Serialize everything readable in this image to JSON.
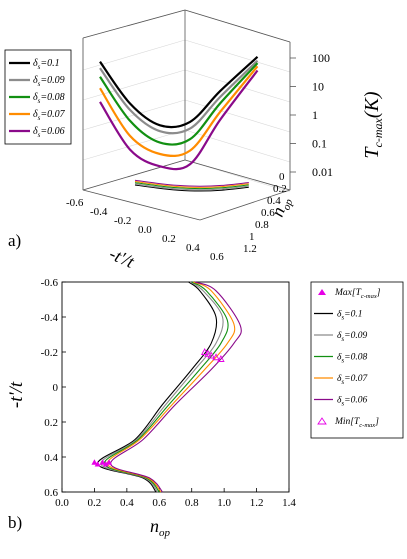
{
  "panels": {
    "a": {
      "label": "a)"
    },
    "b": {
      "label": "b)"
    }
  },
  "colors": {
    "0.1": "#000000",
    "0.09": "#8c8c8c",
    "0.08": "#129012",
    "0.07": "#ff8c00",
    "0.06": "#8a0a8a",
    "marker": "#e600e6"
  },
  "chart_data": [
    {
      "type": "line",
      "subtype": "3d-surface-curves",
      "panel": "a",
      "xlabel": "-t'/t",
      "ylabel": "n_op",
      "zlabel": "T_c-max(K)",
      "z_scale": "log",
      "x_ticks": [
        "-0.6",
        "-0.4",
        "-0.2",
        "0.0",
        "0.2",
        "0.4",
        "0.6"
      ],
      "y_ticks": [
        "0",
        "0.2",
        "0.4",
        "0.6",
        "0.8",
        "1",
        "1.2"
      ],
      "z_ticks": [
        "0.01",
        "0.1",
        "1",
        "10",
        "100"
      ],
      "grid": true,
      "legend_position": "top-left",
      "series": [
        {
          "name": "δ_s=0.1",
          "color": "#000000",
          "x": [
            -0.6,
            -0.4,
            -0.2,
            0.0,
            0.2,
            0.45
          ],
          "z": [
            50,
            2,
            0.4,
            0.6,
            8,
            150
          ]
        },
        {
          "name": "δ_s=0.09",
          "color": "#8c8c8c",
          "x": [
            -0.6,
            -0.4,
            -0.2,
            0.0,
            0.2,
            0.45
          ],
          "z": [
            30,
            1.2,
            0.25,
            0.35,
            5,
            110
          ]
        },
        {
          "name": "δ_s=0.08",
          "color": "#129012",
          "x": [
            -0.6,
            -0.4,
            -0.2,
            0.0,
            0.2,
            0.45
          ],
          "z": [
            15,
            0.5,
            0.1,
            0.15,
            3,
            90
          ]
        },
        {
          "name": "δ_s=0.07",
          "color": "#ff8c00",
          "x": [
            -0.6,
            -0.4,
            -0.2,
            0.0,
            0.2,
            0.45
          ],
          "z": [
            6,
            0.15,
            0.04,
            0.06,
            1.5,
            70
          ]
        },
        {
          "name": "δ_s=0.06",
          "color": "#8a0a8a",
          "x": [
            -0.6,
            -0.4,
            -0.2,
            0.0,
            0.2,
            0.45
          ],
          "z": [
            2,
            0.05,
            0.015,
            0.02,
            0.8,
            50
          ]
        }
      ]
    },
    {
      "type": "line",
      "panel": "b",
      "xlabel": "n_op",
      "ylabel": "-t'/t",
      "xlim": [
        0.0,
        1.4
      ],
      "ylim": [
        -0.6,
        0.6
      ],
      "y_inverted": true,
      "x_ticks": [
        "0.0",
        "0.2",
        "0.4",
        "0.6",
        "0.8",
        "1.0",
        "1.2",
        "1.4"
      ],
      "y_ticks": [
        "-0.6",
        "-0.4",
        "-0.2",
        "0",
        "0.2",
        "0.4",
        "0.6"
      ],
      "legend_position": "right",
      "legend": [
        "Max[T_c-max]",
        "δ_s=0.1",
        "δ_s=0.09",
        "δ_s=0.08",
        "δ_s=0.07",
        "δ_s=0.06",
        "Min[T_c-max]"
      ],
      "series": [
        {
          "name": "δ_s=0.1",
          "color": "#000000",
          "points": [
            [
              0.58,
              0.6
            ],
            [
              0.5,
              0.52
            ],
            [
              0.22,
              0.44
            ],
            [
              0.45,
              0.3
            ],
            [
              0.62,
              0.1
            ],
            [
              0.8,
              -0.1
            ],
            [
              0.92,
              -0.25
            ],
            [
              0.95,
              -0.4
            ],
            [
              0.85,
              -0.55
            ],
            [
              0.78,
              -0.6
            ]
          ]
        },
        {
          "name": "δ_s=0.09",
          "color": "#8c8c8c",
          "points": [
            [
              0.59,
              0.6
            ],
            [
              0.51,
              0.52
            ],
            [
              0.24,
              0.44
            ],
            [
              0.46,
              0.3
            ],
            [
              0.64,
              0.1
            ],
            [
              0.82,
              -0.1
            ],
            [
              0.95,
              -0.25
            ],
            [
              0.99,
              -0.4
            ],
            [
              0.87,
              -0.55
            ],
            [
              0.79,
              -0.6
            ]
          ]
        },
        {
          "name": "δ_s=0.08",
          "color": "#129012",
          "points": [
            [
              0.6,
              0.6
            ],
            [
              0.52,
              0.52
            ],
            [
              0.26,
              0.44
            ],
            [
              0.47,
              0.3
            ],
            [
              0.66,
              0.1
            ],
            [
              0.85,
              -0.1
            ],
            [
              0.98,
              -0.25
            ],
            [
              1.02,
              -0.38
            ],
            [
              0.89,
              -0.55
            ],
            [
              0.8,
              -0.6
            ]
          ]
        },
        {
          "name": "δ_s=0.07",
          "color": "#ff8c00",
          "points": [
            [
              0.61,
              0.6
            ],
            [
              0.53,
              0.52
            ],
            [
              0.28,
              0.44
            ],
            [
              0.48,
              0.3
            ],
            [
              0.68,
              0.1
            ],
            [
              0.88,
              -0.1
            ],
            [
              1.02,
              -0.25
            ],
            [
              1.06,
              -0.36
            ],
            [
              0.92,
              -0.55
            ],
            [
              0.81,
              -0.6
            ]
          ]
        },
        {
          "name": "δ_s=0.06",
          "color": "#8a0a8a",
          "points": [
            [
              0.62,
              0.6
            ],
            [
              0.54,
              0.52
            ],
            [
              0.3,
              0.44
            ],
            [
              0.5,
              0.3
            ],
            [
              0.7,
              0.1
            ],
            [
              0.92,
              -0.1
            ],
            [
              1.06,
              -0.25
            ],
            [
              1.1,
              -0.35
            ],
            [
              0.95,
              -0.55
            ],
            [
              0.82,
              -0.6
            ]
          ]
        }
      ],
      "max_markers": [
        [
          0.2,
          0.43
        ],
        [
          0.22,
          0.44
        ],
        [
          0.25,
          0.43
        ],
        [
          0.27,
          0.44
        ],
        [
          0.29,
          0.43
        ]
      ],
      "min_markers": [
        [
          0.88,
          -0.2
        ],
        [
          0.9,
          -0.19
        ],
        [
          0.92,
          -0.18
        ],
        [
          0.95,
          -0.17
        ],
        [
          0.98,
          -0.16
        ]
      ]
    }
  ]
}
